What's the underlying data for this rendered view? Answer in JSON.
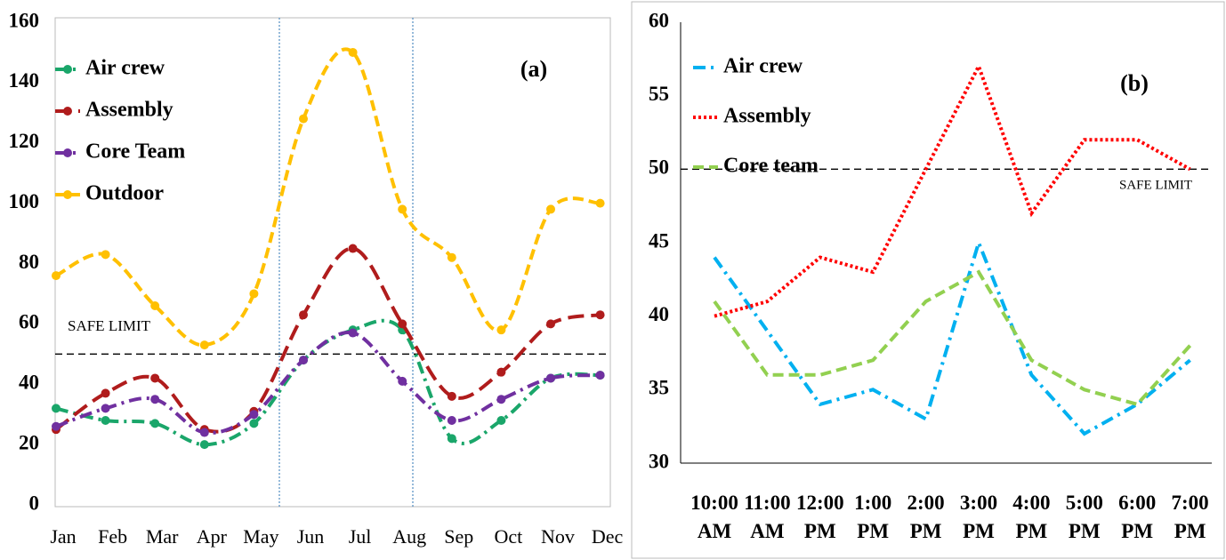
{
  "chart_data": [
    {
      "type": "line",
      "annotation": "(a)",
      "smooth": true,
      "markers": true,
      "categories": [
        "Jan",
        "Feb",
        "Mar",
        "Apr",
        "May",
        "Jun",
        "Jul",
        "Aug",
        "Sep",
        "Oct",
        "Nov",
        "Dec"
      ],
      "series": [
        {
          "name": "Air crew",
          "color": "#1aa66a",
          "line_style": "dash-dot",
          "values": [
            32,
            28,
            27,
            20,
            27,
            48,
            58,
            58,
            22,
            28,
            42,
            43
          ]
        },
        {
          "name": "Assembly",
          "color": "#b01c1c",
          "line_style": "long-dash",
          "values": [
            25,
            37,
            42,
            25,
            31,
            63,
            85,
            60,
            36,
            44,
            60,
            63
          ]
        },
        {
          "name": "Core Team",
          "color": "#7030a0",
          "line_style": "dash-dot",
          "values": [
            26,
            32,
            35,
            24,
            30,
            48,
            57,
            41,
            28,
            35,
            42,
            43
          ]
        },
        {
          "name": "Outdoor",
          "color": "#ffc000",
          "line_style": "dashed",
          "values": [
            76,
            83,
            66,
            53,
            70,
            128,
            150,
            98,
            82,
            58,
            98,
            100
          ]
        }
      ],
      "ylim": [
        0,
        160
      ],
      "yticks": [
        0,
        20,
        40,
        60,
        80,
        100,
        120,
        140,
        160
      ],
      "safe_limit": {
        "value": 50,
        "label": "SAFE LIMIT"
      },
      "legend": "top-left"
    },
    {
      "type": "line",
      "annotation": "(b)",
      "smooth": false,
      "markers": false,
      "categories": [
        "10:00 AM",
        "11:00 AM",
        "12:00 PM",
        "1:00 PM",
        "2:00 PM",
        "3:00 PM",
        "4:00 PM",
        "5:00 PM",
        "6:00 PM",
        "7:00 PM"
      ],
      "series": [
        {
          "name": "Air crew",
          "color": "#00b0f0",
          "line_style": "dash-dot",
          "values": [
            44,
            39,
            34,
            35,
            33,
            45,
            36,
            32,
            34,
            37
          ]
        },
        {
          "name": "Assembly",
          "color": "#ff0000",
          "line_style": "dotted",
          "values": [
            40,
            41,
            44,
            43,
            50,
            57,
            47,
            52,
            52,
            50
          ]
        },
        {
          "name": "Core team",
          "color": "#92d050",
          "line_style": "dashed",
          "values": [
            41,
            36,
            36,
            37,
            41,
            43,
            37,
            35,
            34,
            38
          ]
        }
      ],
      "ylim": [
        30,
        60
      ],
      "yticks": [
        30,
        35,
        40,
        45,
        50,
        55,
        60
      ],
      "safe_limit": {
        "value": 50,
        "label": "SAFE LIMIT"
      },
      "legend": "top-left"
    }
  ]
}
